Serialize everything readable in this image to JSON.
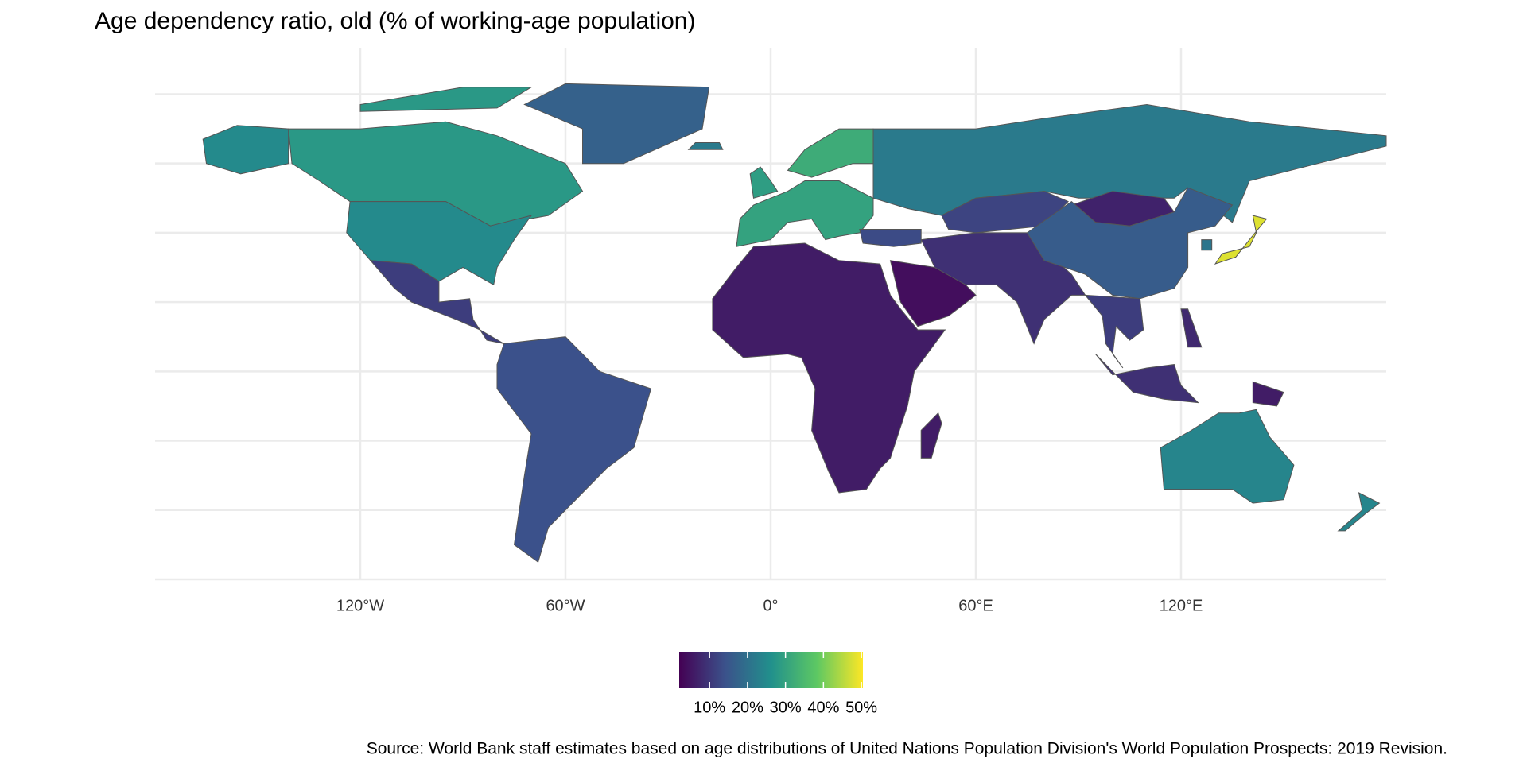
{
  "chart_data": {
    "type": "choropleth",
    "title": "Age dependency ratio, old (% of working-age population)",
    "caption": "Source: World Bank staff estimates based on age distributions of United Nations Population Division's World Population Prospects: 2019 Revision.",
    "xlim": [
      -180,
      180
    ],
    "ylim": [
      -60,
      84
    ],
    "xticks": [
      {
        "value": -120,
        "label": "120°W"
      },
      {
        "value": -60,
        "label": "60°W"
      },
      {
        "value": 0,
        "label": "0°"
      },
      {
        "value": 60,
        "label": "60°E"
      },
      {
        "value": 120,
        "label": "120°E"
      }
    ],
    "yticks": [
      -60,
      -40,
      -20,
      0,
      20,
      40,
      60,
      80
    ],
    "grid": true,
    "values": [
      28,
      28,
      25,
      25,
      17,
      11,
      14,
      30,
      32,
      29,
      22,
      22,
      6,
      6,
      4,
      9,
      12,
      7,
      16,
      11,
      9,
      48,
      21,
      8,
      24,
      24,
      6,
      13
    ],
    "legend": {
      "lim": [
        2,
        50.4
      ],
      "colors": [
        "#440154",
        "#3b528b",
        "#21908c",
        "#5dc863",
        "#fde725"
      ],
      "ticks": [
        {
          "value": 10,
          "label": "10%"
        },
        {
          "value": 20,
          "label": "20%"
        },
        {
          "value": 30,
          "label": "30%"
        },
        {
          "value": 40,
          "label": "40%"
        },
        {
          "value": 50,
          "label": "50%"
        }
      ]
    }
  }
}
